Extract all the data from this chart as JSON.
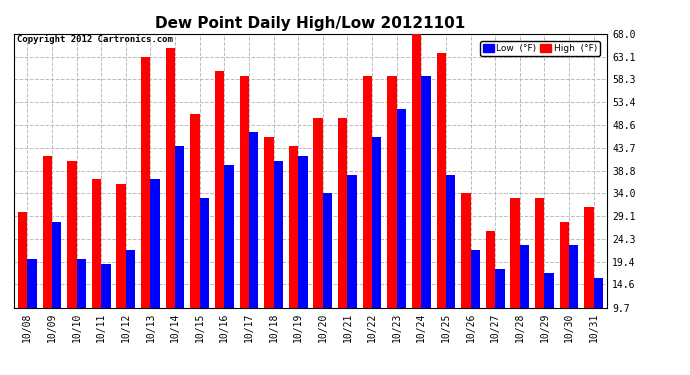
{
  "title": "Dew Point Daily High/Low 20121101",
  "copyright": "Copyright 2012 Cartronics.com",
  "dates": [
    "10/08",
    "10/09",
    "10/10",
    "10/11",
    "10/12",
    "10/13",
    "10/14",
    "10/15",
    "10/16",
    "10/17",
    "10/18",
    "10/19",
    "10/20",
    "10/21",
    "10/22",
    "10/23",
    "10/24",
    "10/25",
    "10/26",
    "10/27",
    "10/28",
    "10/29",
    "10/30",
    "10/31"
  ],
  "high_values": [
    30,
    42,
    41,
    37,
    36,
    63,
    65,
    51,
    60,
    59,
    46,
    44,
    50,
    50,
    59,
    59,
    68,
    64,
    34,
    26,
    33,
    33,
    28,
    31
  ],
  "low_values": [
    20,
    28,
    20,
    19,
    22,
    37,
    44,
    33,
    40,
    47,
    41,
    42,
    34,
    38,
    46,
    52,
    59,
    38,
    22,
    18,
    23,
    17,
    23,
    16
  ],
  "ylim": [
    9.7,
    68.0
  ],
  "yticks": [
    9.7,
    14.6,
    19.4,
    24.3,
    29.1,
    34.0,
    38.8,
    43.7,
    48.6,
    53.4,
    58.3,
    63.1,
    68.0
  ],
  "bar_width": 0.38,
  "high_color": "#ff0000",
  "low_color": "#0000ff",
  "bg_color": "#ffffff",
  "grid_color": "#bbbbbb",
  "title_fontsize": 11,
  "tick_fontsize": 7,
  "legend_low_label": "Low  (°F)",
  "legend_high_label": "High  (°F)"
}
